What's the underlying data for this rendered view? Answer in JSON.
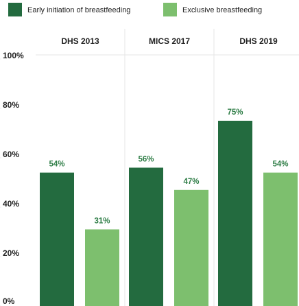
{
  "chart_data": {
    "type": "bar",
    "categories": [
      "DHS 2013",
      "MICS 2017",
      "DHS 2019"
    ],
    "series": [
      {
        "name": "Early initiation of breastfeeding",
        "color": "#236b3f",
        "values": [
          54,
          56,
          75
        ],
        "value_labels": [
          "54%",
          "56%",
          "75%"
        ]
      },
      {
        "name": "Exclusive breastfeeding",
        "color": "#7dbf6e",
        "values": [
          31,
          47,
          54
        ],
        "value_labels": [
          "31%",
          "47%",
          "54%"
        ]
      }
    ],
    "ylim": [
      0,
      100
    ],
    "yticks": [
      {
        "value": 0,
        "label": "0%"
      },
      {
        "value": 20,
        "label": "20%"
      },
      {
        "value": 40,
        "label": "40%"
      },
      {
        "value": 60,
        "label": "60%"
      },
      {
        "value": 80,
        "label": "80%"
      },
      {
        "value": 100,
        "label": "100%"
      }
    ],
    "legend": "top-left"
  }
}
